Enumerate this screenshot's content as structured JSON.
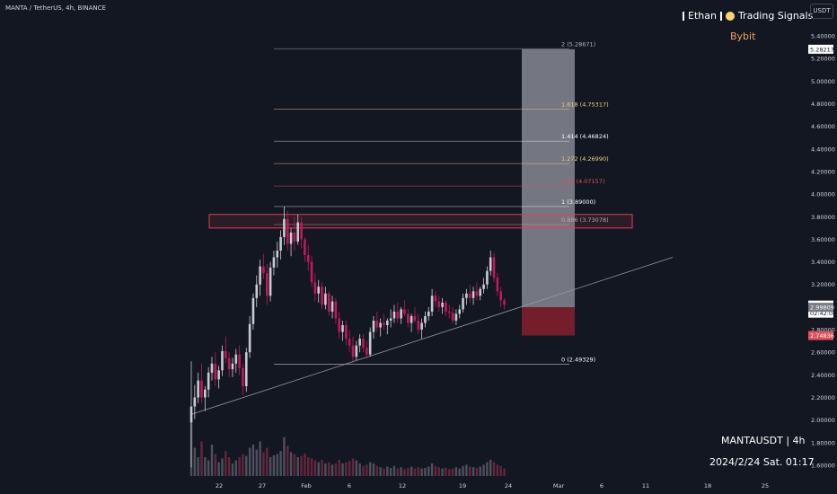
{
  "header": {
    "symbol_title": "MANTA / TetherUS, 4h, BINANCE",
    "brand_name": "Ethan",
    "brand_suffix": "Trading Signals",
    "exchange": "Bybit",
    "currency_button": "USDT"
  },
  "footer": {
    "symbol_period": "MANTAUSDT | 4h",
    "datetime": "2024/2/24 Sat. 01:17"
  },
  "colors": {
    "background": "#131722",
    "up": "#c9cbd1",
    "down": "#c2185b",
    "fib_highlight": "#f0d080",
    "fib_red": "#e0505a",
    "zone_stroke": "#e04050",
    "target_box": "#9598a1",
    "stop_box": "#7a1f2c",
    "trendline": "#9598a1"
  },
  "chart_data": {
    "type": "candlestick",
    "timeframe": "4h",
    "x_axis": {
      "ticks": [
        "22",
        "27",
        "Feb",
        "6",
        "12",
        "19",
        "24",
        "Mar",
        "6",
        "11",
        "18",
        "25"
      ]
    },
    "y_axis": {
      "ylim": [
        1.55,
        5.45
      ],
      "ticks": [
        "5.40000",
        "5.20000",
        "5.00000",
        "4.80000",
        "4.60000",
        "4.40000",
        "4.20000",
        "4.00000",
        "3.80000",
        "3.60000",
        "3.40000",
        "3.20000",
        "2.80000",
        "2.60000",
        "2.40000",
        "2.20000",
        "2.00000",
        "1.80000",
        "1.60000"
      ]
    },
    "price_labels": [
      {
        "value": 5.28217,
        "text": "5.28217",
        "style": "white"
      },
      {
        "value": 3.01778,
        "text": "3.01778",
        "style": "white"
      },
      {
        "value": 3.01778,
        "text": "02:42:08",
        "style": "white-sub"
      },
      {
        "value": 2.99809,
        "text": "2.99809",
        "style": "grey"
      },
      {
        "value": 2.74836,
        "text": "2.74836",
        "style": "red"
      }
    ],
    "fib_levels": [
      {
        "label": "2 (5.28671)",
        "value": 5.28671,
        "color": "#b2b5be"
      },
      {
        "label": "1.618 (4.75317)",
        "value": 4.75317,
        "color": "#f0d080"
      },
      {
        "label": "1.414 (4.46824)",
        "value": 4.46824,
        "color": "#ffffff"
      },
      {
        "label": "1.272 (4.26990)",
        "value": 4.2699,
        "color": "#f0d080"
      },
      {
        "label": "1.13 (4.07157)",
        "value": 4.07157,
        "color": "#e0505a"
      },
      {
        "label": "1 (3.89000)",
        "value": 3.89,
        "color": "#ffffff"
      },
      {
        "label": "0.886 (3.73078)",
        "value": 3.73078,
        "color": "#b2b5be"
      },
      {
        "label": "0 (2.49329)",
        "value": 2.49329,
        "color": "#ffffff"
      }
    ],
    "resistance_zone": {
      "low": 3.7,
      "high": 3.82
    },
    "position": {
      "target": 5.28217,
      "entry": 2.99809,
      "stop": 2.74836
    },
    "trendline": {
      "start_price": 2.05,
      "end_price": 3.44
    },
    "candles": [
      [
        1.98,
        2.52,
        1.58,
        2.12
      ],
      [
        2.12,
        2.31,
        2.01,
        2.2
      ],
      [
        2.2,
        2.42,
        2.15,
        2.35
      ],
      [
        2.35,
        2.5,
        2.15,
        2.2
      ],
      [
        2.2,
        2.3,
        2.08,
        2.27
      ],
      [
        2.27,
        2.47,
        2.2,
        2.42
      ],
      [
        2.42,
        2.56,
        2.35,
        2.5
      ],
      [
        2.5,
        2.6,
        2.3,
        2.36
      ],
      [
        2.36,
        2.48,
        2.28,
        2.44
      ],
      [
        2.44,
        2.66,
        2.39,
        2.61
      ],
      [
        2.61,
        2.74,
        2.5,
        2.55
      ],
      [
        2.55,
        2.6,
        2.38,
        2.45
      ],
      [
        2.45,
        2.55,
        2.38,
        2.5
      ],
      [
        2.5,
        2.63,
        2.42,
        2.58
      ],
      [
        2.58,
        2.66,
        2.4,
        2.46
      ],
      [
        2.46,
        2.5,
        2.22,
        2.3
      ],
      [
        2.3,
        2.64,
        2.25,
        2.6
      ],
      [
        2.6,
        2.92,
        2.55,
        2.85
      ],
      [
        2.85,
        3.12,
        2.8,
        3.08
      ],
      [
        3.08,
        3.28,
        3.0,
        3.2
      ],
      [
        3.2,
        3.42,
        3.1,
        3.36
      ],
      [
        3.36,
        3.47,
        3.25,
        3.3
      ],
      [
        3.3,
        3.38,
        3.02,
        3.1
      ],
      [
        3.1,
        3.4,
        3.05,
        3.35
      ],
      [
        3.35,
        3.5,
        3.28,
        3.44
      ],
      [
        3.44,
        3.58,
        3.35,
        3.5
      ],
      [
        3.5,
        3.68,
        3.42,
        3.62
      ],
      [
        3.62,
        3.89,
        3.55,
        3.78
      ],
      [
        3.78,
        3.85,
        3.5,
        3.56
      ],
      [
        3.56,
        3.7,
        3.45,
        3.66
      ],
      [
        3.66,
        3.8,
        3.5,
        3.58
      ],
      [
        3.58,
        3.82,
        3.55,
        3.75
      ],
      [
        3.75,
        3.8,
        3.52,
        3.6
      ],
      [
        3.6,
        3.62,
        3.4,
        3.46
      ],
      [
        3.46,
        3.55,
        3.32,
        3.4
      ],
      [
        3.4,
        3.45,
        3.18,
        3.22
      ],
      [
        3.22,
        3.3,
        3.05,
        3.12
      ],
      [
        3.12,
        3.24,
        3.04,
        3.18
      ],
      [
        3.18,
        3.22,
        2.98,
        3.02
      ],
      [
        3.02,
        3.18,
        2.98,
        3.12
      ],
      [
        3.12,
        3.14,
        2.92,
        2.96
      ],
      [
        2.96,
        3.1,
        2.9,
        3.05
      ],
      [
        3.05,
        3.08,
        2.85,
        2.9
      ],
      [
        2.9,
        2.96,
        2.72,
        2.78
      ],
      [
        2.78,
        2.88,
        2.7,
        2.84
      ],
      [
        2.84,
        2.88,
        2.66,
        2.72
      ],
      [
        2.72,
        2.8,
        2.6,
        2.66
      ],
      [
        2.66,
        2.74,
        2.52,
        2.56
      ],
      [
        2.56,
        2.7,
        2.53,
        2.66
      ],
      [
        2.66,
        2.76,
        2.6,
        2.72
      ],
      [
        2.72,
        2.76,
        2.6,
        2.64
      ],
      [
        2.64,
        2.7,
        2.54,
        2.58
      ],
      [
        2.58,
        2.82,
        2.56,
        2.78
      ],
      [
        2.78,
        2.92,
        2.72,
        2.88
      ],
      [
        2.88,
        2.96,
        2.78,
        2.82
      ],
      [
        2.82,
        2.9,
        2.74,
        2.86
      ],
      [
        2.86,
        2.94,
        2.8,
        2.84
      ],
      [
        2.84,
        2.9,
        2.76,
        2.88
      ],
      [
        2.88,
        2.98,
        2.82,
        2.9
      ],
      [
        2.9,
        3.02,
        2.86,
        2.96
      ],
      [
        2.96,
        3.04,
        2.86,
        2.9
      ],
      [
        2.9,
        3.0,
        2.85,
        2.98
      ],
      [
        2.98,
        3.06,
        2.92,
        2.94
      ],
      [
        2.94,
        2.98,
        2.82,
        2.86
      ],
      [
        2.86,
        2.94,
        2.78,
        2.92
      ],
      [
        2.92,
        3.0,
        2.86,
        2.88
      ],
      [
        2.88,
        2.94,
        2.76,
        2.8
      ],
      [
        2.8,
        2.9,
        2.72,
        2.86
      ],
      [
        2.86,
        2.96,
        2.82,
        2.92
      ],
      [
        2.92,
        3.0,
        2.88,
        2.96
      ],
      [
        2.96,
        3.16,
        2.92,
        3.1
      ],
      [
        3.1,
        3.14,
        3.0,
        3.05
      ],
      [
        3.05,
        3.1,
        2.96,
        3.0
      ],
      [
        3.0,
        3.08,
        2.94,
        3.04
      ],
      [
        3.04,
        3.06,
        2.92,
        2.96
      ],
      [
        2.96,
        3.02,
        2.9,
        2.95
      ],
      [
        2.95,
        3.0,
        2.85,
        2.88
      ],
      [
        2.88,
        2.98,
        2.84,
        2.94
      ],
      [
        2.94,
        3.02,
        2.9,
        2.98
      ],
      [
        2.98,
        3.12,
        2.95,
        3.08
      ],
      [
        3.08,
        3.16,
        3.02,
        3.12
      ],
      [
        3.12,
        3.2,
        3.04,
        3.08
      ],
      [
        3.08,
        3.18,
        3.02,
        3.14
      ],
      [
        3.14,
        3.22,
        3.06,
        3.1
      ],
      [
        3.1,
        3.18,
        3.06,
        3.16
      ],
      [
        3.16,
        3.26,
        3.12,
        3.2
      ],
      [
        3.2,
        3.36,
        3.16,
        3.32
      ],
      [
        3.32,
        3.5,
        3.28,
        3.44
      ],
      [
        3.44,
        3.48,
        3.22,
        3.26
      ],
      [
        3.26,
        3.3,
        3.1,
        3.14
      ],
      [
        3.14,
        3.18,
        3.0,
        3.06
      ],
      [
        3.06,
        3.08,
        2.98,
        3.02
      ]
    ],
    "volumes": [
      1.0,
      0.45,
      0.3,
      0.55,
      0.3,
      0.25,
      0.5,
      0.35,
      0.22,
      0.28,
      0.4,
      0.3,
      0.2,
      0.25,
      0.3,
      0.35,
      0.32,
      0.45,
      0.5,
      0.42,
      0.55,
      0.38,
      0.45,
      0.3,
      0.33,
      0.35,
      0.4,
      0.62,
      0.48,
      0.38,
      0.35,
      0.3,
      0.32,
      0.36,
      0.3,
      0.28,
      0.25,
      0.22,
      0.26,
      0.2,
      0.22,
      0.18,
      0.2,
      0.26,
      0.2,
      0.22,
      0.24,
      0.28,
      0.25,
      0.2,
      0.16,
      0.18,
      0.22,
      0.2,
      0.16,
      0.14,
      0.12,
      0.15,
      0.13,
      0.16,
      0.12,
      0.14,
      0.11,
      0.13,
      0.15,
      0.12,
      0.14,
      0.12,
      0.13,
      0.15,
      0.2,
      0.16,
      0.14,
      0.12,
      0.13,
      0.11,
      0.12,
      0.14,
      0.12,
      0.16,
      0.18,
      0.15,
      0.14,
      0.13,
      0.15,
      0.18,
      0.22,
      0.26,
      0.22,
      0.18,
      0.16,
      0.12
    ]
  }
}
